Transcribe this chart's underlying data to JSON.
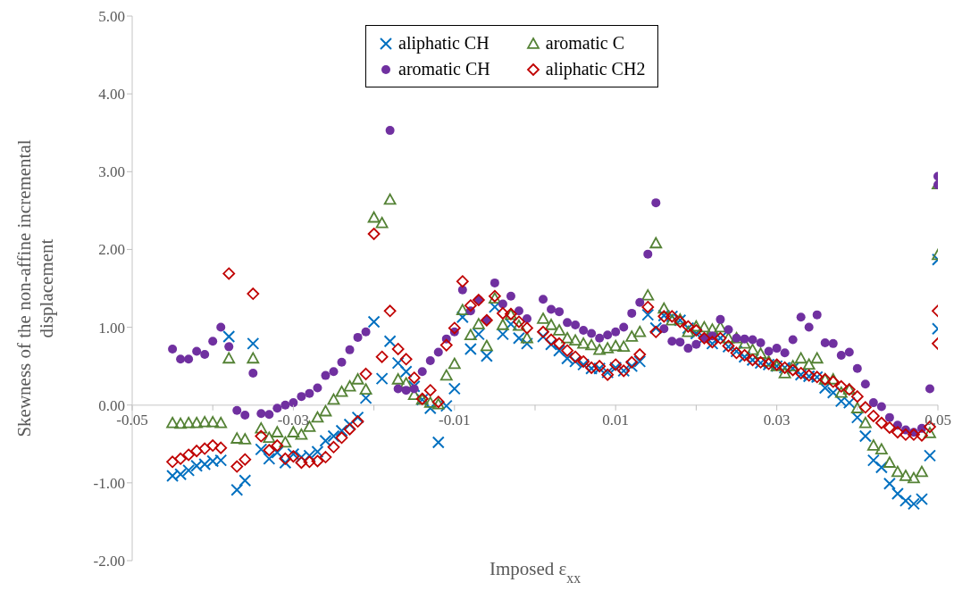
{
  "chart_data": {
    "type": "scatter",
    "xlabel": "Imposed ε$_{xx}$",
    "ylabel": "Skewness of the non-affine incremental displacement",
    "xlim": [
      -0.05,
      0.05
    ],
    "xticks": [
      -0.05,
      {
        "value": -0.04,
        "label": null
      },
      -0.03,
      {
        "value": -0.02,
        "label": null
      },
      -0.01,
      {
        "value": 0,
        "label": null
      },
      0.01,
      {
        "value": 0.02,
        "label": null
      },
      0.03,
      {
        "value": 0.04,
        "label": null
      },
      0.05
    ],
    "ylim": [
      -2,
      5
    ],
    "yticks": [
      {
        "value": -2,
        "label": "-2.00"
      },
      {
        "value": -1,
        "label": "-1.00"
      },
      {
        "value": 0,
        "label": "0.00"
      },
      {
        "value": 1,
        "label": "1.00"
      },
      {
        "value": 2,
        "label": "2.00"
      },
      {
        "value": 3,
        "label": "3.00"
      },
      {
        "value": 4,
        "label": "4.00"
      },
      {
        "value": 5,
        "label": "5.00"
      }
    ],
    "legend": "top",
    "x": [
      -0.045,
      -0.044,
      -0.043,
      -0.042,
      -0.041,
      -0.04,
      -0.039,
      -0.038,
      -0.037,
      -0.036,
      -0.035,
      -0.034,
      -0.033,
      -0.032,
      -0.031,
      -0.03,
      -0.029,
      -0.028,
      -0.027,
      -0.026,
      -0.025,
      -0.024,
      -0.023,
      -0.022,
      -0.021,
      -0.02,
      -0.019,
      -0.018,
      -0.017,
      -0.016,
      -0.015,
      -0.014,
      -0.013,
      -0.012,
      -0.011,
      -0.01,
      -0.009,
      -0.008,
      -0.007,
      -0.006,
      -0.005,
      -0.004,
      -0.003,
      -0.002,
      -0.001,
      0,
      0.001,
      0.002,
      0.003,
      0.004,
      0.005,
      0.006,
      0.007,
      0.008,
      0.009,
      0.01,
      0.011,
      0.012,
      0.013,
      0.014,
      0.015,
      0.016,
      0.017,
      0.018,
      0.019,
      0.02,
      0.021,
      0.022,
      0.023,
      0.024,
      0.025,
      0.026,
      0.027,
      0.028,
      0.029,
      0.03,
      0.031,
      0.032,
      0.033,
      0.034,
      0.035,
      0.036,
      0.037,
      0.038,
      0.039,
      0.04,
      0.041,
      0.042,
      0.043,
      0.044,
      0.045,
      0.046,
      0.047,
      0.048,
      0.049,
      0.05,
      0.05
    ],
    "series": [
      {
        "name": "aliphatic CH",
        "color": "#0070c0",
        "marker": "cross",
        "values": [
          -0.91,
          -0.89,
          -0.84,
          -0.78,
          -0.76,
          -0.72,
          -0.71,
          0.88,
          -1.09,
          -0.97,
          0.79,
          -0.57,
          -0.69,
          -0.61,
          -0.74,
          -0.63,
          -0.67,
          -0.65,
          -0.6,
          -0.46,
          -0.4,
          -0.33,
          -0.25,
          -0.16,
          0.09,
          1.07,
          0.34,
          0.82,
          0.54,
          0.43,
          0.24,
          0.07,
          -0.04,
          -0.48,
          -0.01,
          0.21,
          1.13,
          0.72,
          0.91,
          0.63,
          1.26,
          0.91,
          1.04,
          0.86,
          0.79,
          null,
          0.88,
          0.78,
          0.7,
          0.6,
          0.56,
          0.52,
          0.47,
          0.47,
          0.42,
          0.48,
          0.44,
          0.5,
          0.56,
          1.16,
          0.99,
          1.15,
          1.14,
          1.09,
          0.99,
          0.92,
          0.86,
          0.79,
          0.86,
          0.75,
          0.69,
          0.62,
          0.58,
          0.54,
          0.52,
          0.5,
          0.48,
          0.47,
          0.39,
          0.37,
          0.36,
          0.22,
          0.16,
          0.05,
          0.03,
          -0.16,
          -0.4,
          -0.71,
          -0.8,
          -1.01,
          -1.14,
          -1.23,
          -1.27,
          -1.21,
          -0.65,
          1.87,
          0.98
        ]
      },
      {
        "name": "aromatic C",
        "color": "#548235",
        "marker": "triangle",
        "values": [
          -0.23,
          -0.24,
          -0.23,
          -0.23,
          -0.22,
          -0.22,
          -0.23,
          0.6,
          -0.43,
          -0.44,
          0.6,
          -0.3,
          -0.42,
          -0.35,
          -0.48,
          -0.35,
          -0.38,
          -0.28,
          -0.16,
          -0.08,
          0.07,
          0.17,
          0.24,
          0.33,
          0.2,
          2.41,
          2.34,
          2.64,
          0.33,
          0.28,
          0.13,
          0.07,
          0.03,
          0.01,
          0.38,
          0.53,
          1.22,
          0.9,
          1.04,
          0.76,
          1.37,
          1.03,
          1.16,
          1.02,
          0.86,
          null,
          1.11,
          1.03,
          0.96,
          0.86,
          0.83,
          0.79,
          0.77,
          0.71,
          0.73,
          0.76,
          0.75,
          0.88,
          0.94,
          1.41,
          2.08,
          1.24,
          1.09,
          1.1,
          0.94,
          1.01,
          1,
          0.97,
          1,
          0.86,
          0.86,
          0.79,
          0.71,
          0.66,
          0.56,
          0.5,
          0.41,
          0.5,
          0.6,
          0.52,
          0.6,
          0.33,
          0.33,
          0.16,
          0.2,
          -0.04,
          -0.23,
          -0.52,
          -0.57,
          -0.74,
          -0.86,
          -0.91,
          -0.94,
          -0.86,
          -0.36,
          2.84,
          1.93
        ]
      },
      {
        "name": "aromatic CH",
        "color": "#7030a0",
        "marker": "circle",
        "values": [
          0.72,
          0.59,
          0.59,
          0.69,
          0.65,
          0.82,
          1,
          0.75,
          -0.07,
          -0.13,
          0.41,
          -0.11,
          -0.12,
          -0.04,
          0,
          0.03,
          0.11,
          0.15,
          0.22,
          0.38,
          0.43,
          0.55,
          0.71,
          0.87,
          0.94,
          null,
          null,
          3.53,
          0.21,
          0.19,
          0.21,
          0.43,
          0.57,
          0.68,
          0.85,
          0.94,
          1.48,
          1.21,
          1.35,
          1.09,
          1.57,
          1.3,
          1.4,
          1.21,
          1.11,
          null,
          1.36,
          1.23,
          1.2,
          1.06,
          1.03,
          0.96,
          0.92,
          0.86,
          0.9,
          0.94,
          1,
          1.18,
          1.32,
          1.94,
          2.6,
          0.98,
          0.82,
          0.81,
          0.73,
          0.78,
          0.86,
          0.89,
          1.1,
          0.97,
          0.86,
          0.85,
          0.84,
          0.8,
          0.69,
          0.73,
          0.67,
          0.84,
          1.13,
          1,
          1.16,
          0.8,
          0.79,
          0.64,
          0.68,
          0.47,
          0.27,
          0.03,
          -0.02,
          -0.16,
          -0.26,
          -0.32,
          -0.35,
          -0.3,
          0.21,
          2.94,
          2.83
        ]
      },
      {
        "name": "aliphatic CH2",
        "color": "#c00000",
        "marker": "diamond",
        "values": [
          -0.73,
          -0.69,
          -0.64,
          -0.59,
          -0.56,
          -0.52,
          -0.55,
          1.69,
          -0.79,
          -0.7,
          1.43,
          -0.4,
          -0.58,
          -0.52,
          -0.69,
          -0.66,
          -0.74,
          -0.73,
          -0.72,
          -0.67,
          -0.54,
          -0.42,
          -0.31,
          -0.21,
          0.4,
          2.2,
          0.62,
          1.21,
          0.72,
          0.59,
          0.35,
          0.08,
          0.19,
          0.04,
          0.77,
          0.99,
          1.59,
          1.28,
          1.35,
          1.09,
          1.4,
          1.18,
          1.17,
          1.07,
          0.99,
          null,
          0.94,
          0.84,
          0.79,
          0.7,
          0.62,
          0.56,
          0.48,
          0.5,
          0.39,
          0.52,
          0.44,
          0.55,
          0.65,
          1.26,
          0.94,
          1.14,
          1.14,
          1.07,
          1.01,
          0.96,
          0.86,
          0.81,
          0.86,
          0.76,
          0.67,
          0.64,
          0.58,
          0.55,
          0.53,
          0.52,
          0.48,
          0.45,
          0.41,
          0.38,
          0.36,
          0.33,
          0.3,
          0.24,
          0.2,
          0.11,
          -0.03,
          -0.14,
          -0.23,
          -0.29,
          -0.35,
          -0.38,
          -0.38,
          -0.39,
          -0.28,
          1.21,
          0.79
        ]
      }
    ]
  }
}
